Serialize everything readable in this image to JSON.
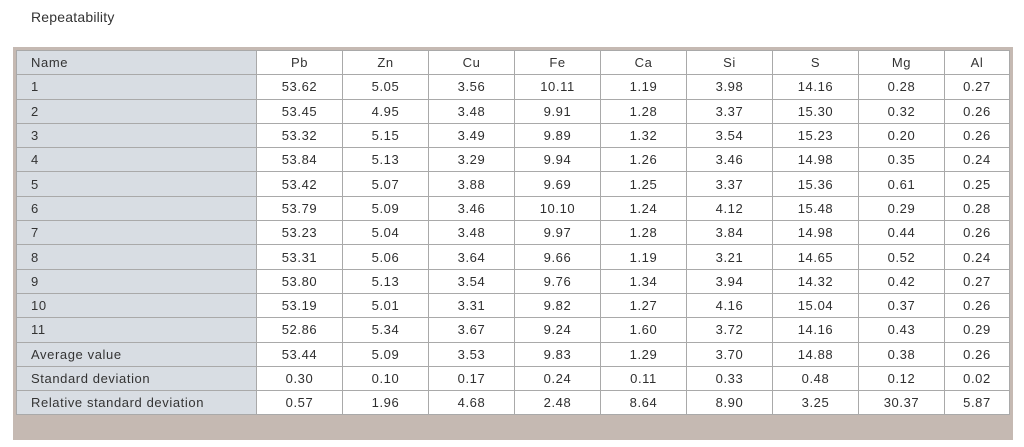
{
  "title": "Repeatability",
  "table": {
    "header": {
      "name": "Name",
      "columns": [
        "Pb",
        "Zn",
        "Cu",
        "Fe",
        "Ca",
        "Si",
        "S",
        "Mg",
        "Al"
      ]
    },
    "rows": [
      {
        "name": "1",
        "values": [
          "53.62",
          "5.05",
          "3.56",
          "10.11",
          "1.19",
          "3.98",
          "14.16",
          "0.28",
          "0.27"
        ]
      },
      {
        "name": "2",
        "values": [
          "53.45",
          "4.95",
          "3.48",
          "9.91",
          "1.28",
          "3.37",
          "15.30",
          "0.32",
          "0.26"
        ]
      },
      {
        "name": "3",
        "values": [
          "53.32",
          "5.15",
          "3.49",
          "9.89",
          "1.32",
          "3.54",
          "15.23",
          "0.20",
          "0.26"
        ]
      },
      {
        "name": "4",
        "values": [
          "53.84",
          "5.13",
          "3.29",
          "9.94",
          "1.26",
          "3.46",
          "14.98",
          "0.35",
          "0.24"
        ]
      },
      {
        "name": "5",
        "values": [
          "53.42",
          "5.07",
          "3.88",
          "9.69",
          "1.25",
          "3.37",
          "15.36",
          "0.61",
          "0.25"
        ]
      },
      {
        "name": "6",
        "values": [
          "53.79",
          "5.09",
          "3.46",
          "10.10",
          "1.24",
          "4.12",
          "15.48",
          "0.29",
          "0.28"
        ]
      },
      {
        "name": "7",
        "values": [
          "53.23",
          "5.04",
          "3.48",
          "9.97",
          "1.28",
          "3.84",
          "14.98",
          "0.44",
          "0.26"
        ]
      },
      {
        "name": "8",
        "values": [
          "53.31",
          "5.06",
          "3.64",
          "9.66",
          "1.19",
          "3.21",
          "14.65",
          "0.52",
          "0.24"
        ]
      },
      {
        "name": "9",
        "values": [
          "53.80",
          "5.13",
          "3.54",
          "9.76",
          "1.34",
          "3.94",
          "14.32",
          "0.42",
          "0.27"
        ]
      },
      {
        "name": "10",
        "values": [
          "53.19",
          "5.01",
          "3.31",
          "9.82",
          "1.27",
          "4.16",
          "15.04",
          "0.37",
          "0.26"
        ]
      },
      {
        "name": "11",
        "values": [
          "52.86",
          "5.34",
          "3.67",
          "9.24",
          "1.60",
          "3.72",
          "14.16",
          "0.43",
          "0.29"
        ]
      },
      {
        "name": "Average value",
        "values": [
          "53.44",
          "5.09",
          "3.53",
          "9.83",
          "1.29",
          "3.70",
          "14.88",
          "0.38",
          "0.26"
        ]
      },
      {
        "name": "Standard deviation",
        "values": [
          "0.30",
          "0.10",
          "0.17",
          "0.24",
          "0.11",
          "0.33",
          "0.48",
          "0.12",
          "0.02"
        ]
      },
      {
        "name": "Relative standard deviation",
        "values": [
          "0.57",
          "1.96",
          "4.68",
          "2.48",
          "8.64",
          "8.90",
          "3.25",
          "30.37",
          "5.87"
        ]
      }
    ]
  },
  "colors": {
    "name_column_bg": "#d8dde3",
    "frame": "#c5b9b2",
    "grid": "#a9a9a9"
  }
}
